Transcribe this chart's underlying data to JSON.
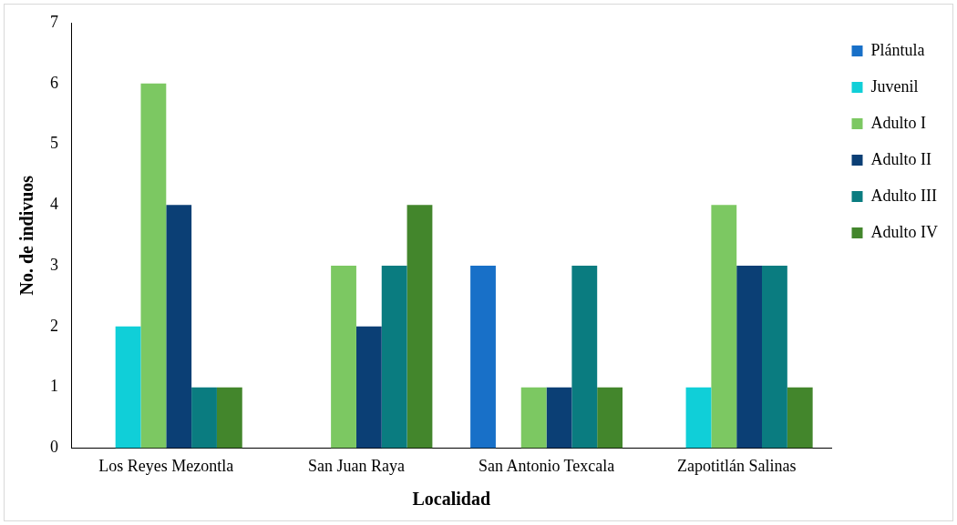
{
  "chart_data": {
    "type": "bar",
    "xlabel": "Localidad",
    "ylabel": "No. de indivuos",
    "categories": [
      "Los Reyes Mezontla",
      "San Juan Raya",
      "San Antonio Texcala",
      "Zapotitlán Salinas"
    ],
    "series": [
      {
        "name": "Plántula",
        "color": "#1870c8",
        "values": [
          0,
          0,
          3,
          0
        ]
      },
      {
        "name": "Juvenil",
        "color": "#10cfd8",
        "values": [
          2,
          0,
          0,
          1
        ]
      },
      {
        "name": "Adulto I",
        "color": "#7cc862",
        "values": [
          6,
          3,
          1,
          4
        ]
      },
      {
        "name": "Adulto II",
        "color": "#0b3f75",
        "values": [
          4,
          2,
          1,
          3
        ]
      },
      {
        "name": "Adulto III",
        "color": "#0a7c80",
        "values": [
          1,
          3,
          3,
          3
        ]
      },
      {
        "name": "Adulto IV",
        "color": "#43862c",
        "values": [
          1,
          4,
          1,
          1
        ]
      }
    ],
    "ylim": [
      0,
      7
    ],
    "yticks": [
      0,
      1,
      2,
      3,
      4,
      5,
      6,
      7
    ],
    "grid": false,
    "legend": "right"
  }
}
